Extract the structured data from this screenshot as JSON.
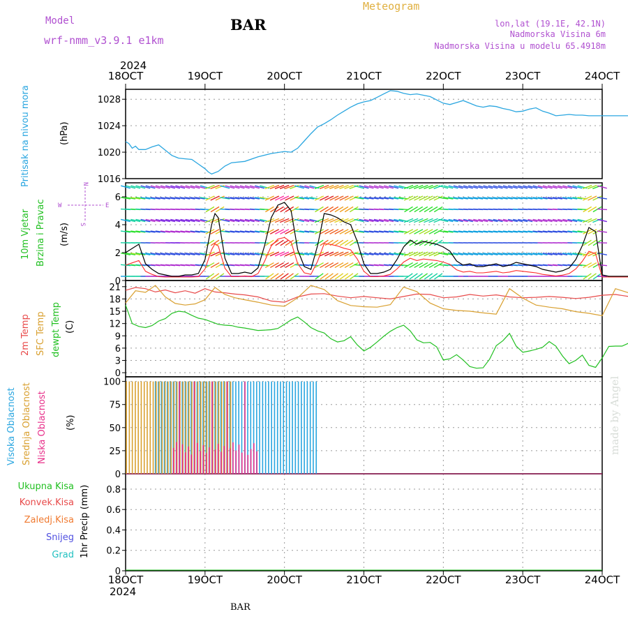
{
  "header": {
    "model_label": "Model",
    "model_name": "wrf-nmm_v3.9.1  e1km",
    "station": "BAR",
    "product": "Meteogram",
    "lonlat": "lon,lat (19.1E, 42.1N)",
    "altitude": "Nadmorska Visina 6m",
    "model_altitude": "Nadmorska Visina u modelu 65.4918m",
    "footer_station": "BAR",
    "credit": "made by Angel"
  },
  "axis": {
    "year": "2024",
    "dates": [
      "18OCT",
      "19OCT",
      "20OCT",
      "21OCT",
      "22OCT",
      "23OCT",
      "24OCT"
    ]
  },
  "colors": {
    "pressure": "#2aa6e0",
    "wind_speed": "#000000",
    "gust": "#ff2a2a",
    "temp2m": "#e84a4a",
    "sfc": "#d9a030",
    "dewpt": "#22c022",
    "high_cloud": "#2aa6e0",
    "mid_cloud": "#d9a030",
    "low_cloud": "#e8308a",
    "purple": "#b050d0",
    "green": "#22c022"
  },
  "panels": {
    "pressure": {
      "label1": "Pritisak na nivou mora",
      "unit": "(hPa)",
      "ticks": [
        "1016",
        "1020",
        "1024",
        "1028"
      ]
    },
    "wind": {
      "label1": "10m Vjetar",
      "label2": "Brzina i Pravac",
      "unit": "(m/s)",
      "ticks": [
        "0",
        "2",
        "4",
        "6"
      ],
      "compass_n": "N",
      "compass_w": "W",
      "compass_e": "E",
      "compass_s": "S"
    },
    "temp": {
      "label1": "2m Temp",
      "label2": "SFC Temp",
      "label3": "dewpt Temp",
      "unit": "(C)",
      "ticks": [
        "0",
        "3",
        "6",
        "9",
        "12",
        "15",
        "18",
        "21"
      ]
    },
    "cloud": {
      "label1": "Visoka Oblacnost",
      "label2": "Srednja Oblacnost",
      "label3": "Niska Oblacnost",
      "unit": "(%)",
      "ticks": [
        "0",
        "25",
        "50",
        "75",
        "100"
      ]
    },
    "precip": {
      "label_ukupna": "Ukupna Kisa",
      "label_konvek": "Konvek.Kisa",
      "label_zaledj": "Zaledj.Kisa",
      "label_snijeg": "Snijeg",
      "label_grad": "Grad",
      "unit": "1hr Precip (mm)",
      "ticks": [
        "0",
        "0.2",
        "0.4",
        "0.6",
        "0.8"
      ]
    }
  },
  "chart_data": [
    {
      "type": "line",
      "name": "pressure",
      "ylabel": "(hPa)",
      "ylim": [
        1016,
        1029.5
      ],
      "x_hours": [
        0,
        1,
        2,
        3,
        4,
        6,
        8,
        10,
        12,
        14,
        16,
        18,
        20,
        22,
        24,
        25,
        26,
        28,
        30,
        32,
        36,
        40,
        44,
        48,
        50,
        52,
        54,
        56,
        58,
        60,
        62,
        64,
        66,
        68,
        70,
        72,
        74,
        76,
        78,
        80,
        82,
        84,
        86,
        88,
        90,
        92,
        94,
        96,
        98,
        100,
        102,
        104,
        106,
        108,
        110,
        112,
        114,
        116,
        118,
        120,
        122,
        124,
        126,
        128,
        130,
        132,
        134,
        136,
        138,
        140,
        142,
        144,
        146,
        148,
        150,
        152,
        154,
        156,
        158,
        160,
        162,
        164,
        166,
        168
      ],
      "values": [
        1021.6,
        1021.3,
        1020.6,
        1020.9,
        1020.4,
        1020.4,
        1020.8,
        1021.1,
        1020.3,
        1019.5,
        1019.1,
        1019.0,
        1018.9,
        1018.2,
        1017.5,
        1017.0,
        1016.7,
        1017.1,
        1017.9,
        1018.4,
        1018.6,
        1019.3,
        1019.8,
        1020.1,
        1020.0,
        1020.6,
        1021.7,
        1022.8,
        1023.8,
        1024.3,
        1024.9,
        1025.6,
        1026.2,
        1026.8,
        1027.3,
        1027.6,
        1027.8,
        1028.3,
        1028.8,
        1029.3,
        1029.2,
        1028.9,
        1028.7,
        1028.8,
        1028.6,
        1028.4,
        1027.9,
        1027.4,
        1027.2,
        1027.5,
        1027.8,
        1027.4,
        1027.0,
        1026.8,
        1027.0,
        1026.9,
        1026.6,
        1026.4,
        1026.1,
        1026.2,
        1026.5,
        1026.7,
        1026.2,
        1025.9,
        1025.5,
        1025.6,
        1025.7,
        1025.6,
        1025.6,
        1025.5,
        1025.5,
        1025.5,
        1025.5,
        1025.5,
        1025.5,
        1025.5,
        1025.5,
        1025.5,
        1025.5,
        1025.5,
        1025.5,
        1025.5,
        1025.5,
        1025.5
      ]
    },
    {
      "type": "line",
      "name": "wind_speed",
      "ylabel": "(m/s)",
      "ylim": [
        0,
        7
      ],
      "x_hours": [
        0,
        2,
        4,
        6,
        8,
        10,
        12,
        14,
        16,
        18,
        20,
        22,
        24,
        26,
        27,
        28,
        30,
        32,
        34,
        36,
        38,
        40,
        42,
        44,
        46,
        48,
        50,
        52,
        54,
        56,
        58,
        60,
        62,
        64,
        66,
        68,
        70,
        72,
        74,
        76,
        78,
        80,
        82,
        84,
        86,
        88,
        90,
        92,
        94,
        96,
        98,
        100,
        102,
        104,
        106,
        108,
        110,
        112,
        114,
        116,
        118,
        120,
        122,
        124,
        126,
        128,
        130,
        132,
        134,
        136,
        138,
        140,
        142,
        144,
        146,
        148,
        150,
        152,
        154,
        156,
        158,
        160,
        162,
        164,
        166,
        168
      ],
      "values": [
        2.0,
        2.3,
        2.6,
        1.2,
        0.8,
        0.5,
        0.4,
        0.3,
        0.3,
        0.4,
        0.4,
        0.5,
        1.5,
        4.0,
        4.8,
        4.5,
        1.6,
        0.5,
        0.5,
        0.6,
        0.5,
        0.9,
        2.5,
        4.5,
        5.4,
        5.6,
        5.0,
        2.2,
        1.0,
        0.8,
        2.5,
        4.8,
        4.7,
        4.5,
        4.2,
        4.0,
        2.8,
        1.2,
        0.5,
        0.5,
        0.6,
        0.8,
        1.5,
        2.4,
        2.9,
        2.6,
        2.8,
        2.7,
        2.6,
        2.4,
        2.1,
        1.4,
        1.1,
        1.2,
        1.0,
        1.0,
        1.1,
        1.2,
        1.0,
        1.1,
        1.3,
        1.2,
        1.1,
        1.0,
        0.8,
        0.7,
        0.6,
        0.7,
        0.9,
        1.5,
        2.5,
        3.8,
        3.5,
        0.4,
        0.3,
        0.3,
        0.3,
        0.3,
        0.4,
        0.5,
        0.5,
        1.2,
        2.5,
        4.0,
        4.2,
        4.2
      ]
    },
    {
      "type": "line",
      "name": "temperature",
      "ylabel": "(C)",
      "ylim": [
        -1,
        22.5
      ],
      "series": [
        {
          "name": "2m Temp",
          "x_hours": [
            0,
            3,
            6,
            9,
            12,
            15,
            18,
            21,
            24,
            27,
            30,
            33,
            36,
            40,
            44,
            48,
            52,
            56,
            60,
            64,
            68,
            72,
            76,
            80,
            84,
            88,
            92,
            96,
            100,
            104,
            108,
            112,
            116,
            120,
            124,
            128,
            132,
            136,
            140,
            144,
            148,
            152,
            156,
            160,
            164,
            168
          ],
          "values": [
            20.1,
            20.8,
            20.5,
            19.7,
            20.2,
            19.5,
            20.0,
            19.4,
            20.5,
            19.7,
            19.5,
            19.2,
            19.0,
            18.5,
            17.5,
            17.2,
            18.5,
            19.2,
            19.3,
            18.7,
            18.3,
            18.6,
            18.3,
            18.0,
            18.6,
            19.2,
            19.1,
            18.3,
            18.5,
            19.1,
            18.7,
            19.0,
            18.5,
            18.3,
            18.4,
            18.6,
            18.4,
            18.1,
            18.4,
            18.9,
            19.1,
            18.6,
            18.9,
            18.9,
            19.0,
            18.1
          ]
        },
        {
          "name": "SFC Temp",
          "x_hours": [
            0,
            3,
            6,
            9,
            12,
            15,
            18,
            21,
            24,
            27,
            30,
            33,
            36,
            40,
            44,
            48,
            52,
            56,
            60,
            64,
            68,
            72,
            76,
            80,
            84,
            88,
            92,
            96,
            100,
            104,
            108,
            112,
            116,
            120,
            124,
            128,
            132,
            136,
            140,
            144,
            148,
            152,
            156,
            160,
            164,
            168
          ],
          "values": [
            17.0,
            20.0,
            19.6,
            21.3,
            18.5,
            16.9,
            16.5,
            16.8,
            17.8,
            20.8,
            19.1,
            18.3,
            17.8,
            17.2,
            16.5,
            16.2,
            18.3,
            21.3,
            20.3,
            17.6,
            16.4,
            16.1,
            16.0,
            16.6,
            20.9,
            19.8,
            17.0,
            15.6,
            15.2,
            15.0,
            14.6,
            14.3,
            20.5,
            18.2,
            16.5,
            16.0,
            15.6,
            14.9,
            14.5,
            13.9,
            20.5,
            19.5,
            17.4,
            16.0,
            15.7,
            15.5
          ]
        },
        {
          "name": "dewpt Temp",
          "x_hours": [
            0,
            2,
            4,
            6,
            8,
            10,
            12,
            14,
            16,
            18,
            20,
            22,
            24,
            26,
            28,
            30,
            32,
            34,
            36,
            38,
            40,
            42,
            44,
            46,
            48,
            50,
            52,
            54,
            56,
            58,
            60,
            62,
            64,
            66,
            68,
            70,
            72,
            74,
            76,
            78,
            80,
            82,
            84,
            86,
            88,
            90,
            92,
            94,
            96,
            98,
            100,
            102,
            104,
            106,
            108,
            110,
            112,
            114,
            116,
            118,
            120,
            122,
            124,
            126,
            128,
            130,
            132,
            134,
            136,
            138,
            140,
            142,
            144,
            146,
            148,
            150,
            152,
            154,
            156,
            158,
            160,
            162,
            164,
            166,
            168
          ],
          "values": [
            16.5,
            12.0,
            11.3,
            11.0,
            11.5,
            12.6,
            13.2,
            14.5,
            15.0,
            14.8,
            14.0,
            13.3,
            13.0,
            12.4,
            11.8,
            11.6,
            11.5,
            11.1,
            10.9,
            10.6,
            10.3,
            10.4,
            10.5,
            10.8,
            11.8,
            12.9,
            13.6,
            12.4,
            11.0,
            10.2,
            9.7,
            8.3,
            7.5,
            7.8,
            8.8,
            6.8,
            5.3,
            6.2,
            7.5,
            8.9,
            10.1,
            11.0,
            11.6,
            10.2,
            8.0,
            7.3,
            7.4,
            6.3,
            3.1,
            3.4,
            4.4,
            3.1,
            1.5,
            1.1,
            1.2,
            3.3,
            6.6,
            7.8,
            9.6,
            6.5,
            5.0,
            5.3,
            5.7,
            6.2,
            7.6,
            6.5,
            4.1,
            2.2,
            3.0,
            4.3,
            1.8,
            1.3,
            3.6,
            6.4,
            6.5,
            6.5,
            7.2,
            7.8,
            8.9,
            9.5,
            10.5,
            9.5,
            8.6,
            7.9,
            8.9
          ]
        }
      ]
    },
    {
      "type": "bar",
      "name": "cloud_cover",
      "ylabel": "(%)",
      "ylim": [
        0,
        105
      ],
      "series": [
        {
          "name": "Visoka Oblacnost",
          "start_hour": 9,
          "end_hour": 58,
          "value": 100
        },
        {
          "name": "Srednja Oblacnost",
          "start_hour": 0,
          "end_hour": 32,
          "value": 100
        },
        {
          "name": "Niska Oblacnost",
          "start_hour": 14,
          "end_hour": 40,
          "value": 100
        }
      ]
    },
    {
      "type": "line",
      "name": "precipitation",
      "ylabel": "1hr Precip (mm)",
      "ylim": [
        0,
        0.95
      ],
      "series": [
        {
          "name": "Ukupna Kisa",
          "values": [
            0
          ]
        }
      ]
    }
  ]
}
